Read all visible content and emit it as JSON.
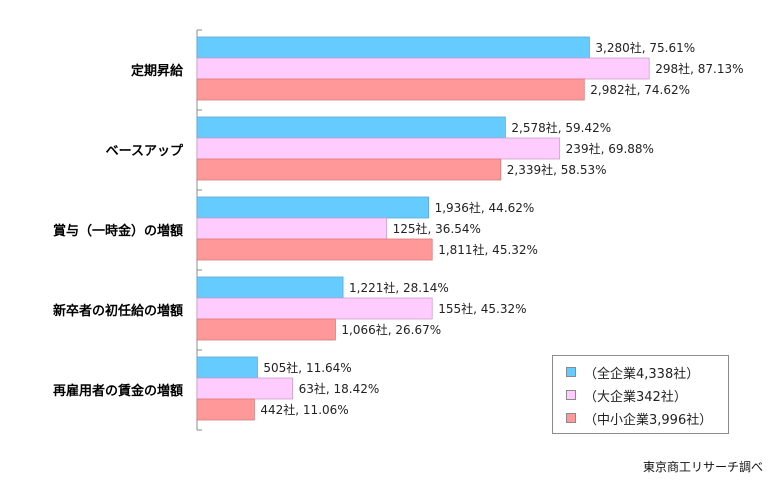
{
  "chart_data": {
    "type": "bar",
    "orientation": "horizontal",
    "title": "",
    "xlabel": "",
    "ylabel": "",
    "xlim": [
      0,
      100
    ],
    "grid": false,
    "legend_position": "bottom-right",
    "categories": [
      "定期昇給",
      "ベースアップ",
      "賞与（一時金）の増額",
      "新卒者の初任給の増額",
      "再雇用者の賃金の増額"
    ],
    "series": [
      {
        "name": "（全企業4,338社）",
        "color": "#66ccff",
        "values": [
          75.61,
          59.42,
          44.62,
          28.14,
          11.64
        ],
        "counts": [
          "3,280社",
          "2,578社",
          "1,936社",
          "1,221社",
          "505社"
        ],
        "labels": [
          "3,280社, 75.61%",
          "2,578社, 59.42%",
          "1,936社, 44.62%",
          "1,221社, 28.14%",
          "505社, 11.64%"
        ]
      },
      {
        "name": "（大企業342社）",
        "color": "#ffccff",
        "values": [
          87.13,
          69.88,
          36.54,
          45.32,
          18.42
        ],
        "counts": [
          "298社",
          "239社",
          "125社",
          "155社",
          "63社"
        ],
        "labels": [
          "298社, 87.13%",
          "239社, 69.88%",
          "125社, 36.54%",
          "155社, 45.32%",
          "63社, 18.42%"
        ]
      },
      {
        "name": "（中小企業3,996社）",
        "color": "#ff9999",
        "values": [
          74.62,
          58.53,
          45.32,
          26.67,
          11.06
        ],
        "counts": [
          "2,982社",
          "2,339社",
          "1,811社",
          "1,066社",
          "442社"
        ],
        "labels": [
          "2,982社, 74.62%",
          "2,339社, 58.53%",
          "1,811社, 45.32%",
          "1,066社, 26.67%",
          "442社, 11.06%"
        ]
      }
    ],
    "source": "東京商工リサーチ調べ"
  }
}
